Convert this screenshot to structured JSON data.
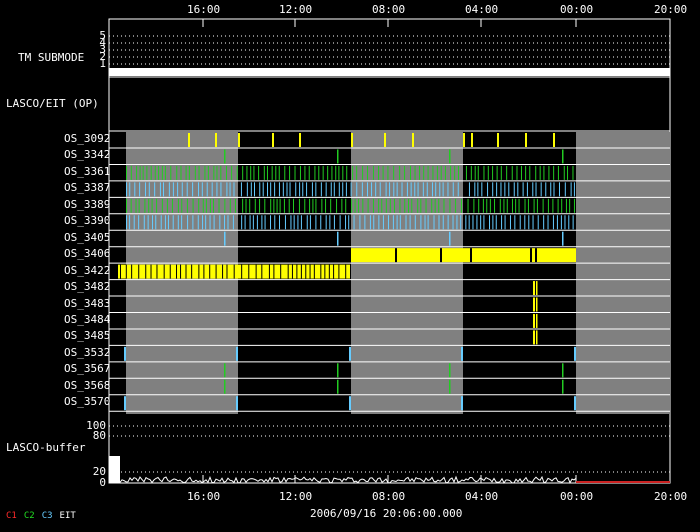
{
  "chart_data": {
    "type": "timeline",
    "time_ticks": [
      "16:00",
      "12:00",
      "08:00",
      "04:00",
      "00:00",
      "20:00"
    ],
    "panel_labels": {
      "tm_submode": "TM SUBMODE",
      "lasco_eit": "LASCO/EIT (OP)",
      "lasco_buffer": "LASCO-buffer"
    },
    "tm_submode_ticks": [
      "5",
      "4",
      "3",
      "2",
      "1"
    ],
    "buffer_ticks": [
      "100",
      "80",
      "20",
      "0"
    ],
    "timestamp": "2006/09/16 20:06:00.000",
    "legend": [
      {
        "label": "C1",
        "color": "#ff2a2a"
      },
      {
        "label": "C2",
        "color": "#22dd22"
      },
      {
        "label": "C3",
        "color": "#66ccff"
      },
      {
        "label": "EIT",
        "color": "#ffffff"
      }
    ],
    "colors": {
      "gray_band": "#808080",
      "yellow": "#ffff00",
      "green": "#22cc22",
      "cyan": "#66ccff",
      "white": "#ffffff"
    },
    "rows": [
      {
        "name": "OS_3092",
        "pattern": "sparse",
        "color": "yellow"
      },
      {
        "name": "OS_3342",
        "pattern": "one_per_cycle",
        "color": "green"
      },
      {
        "name": "OS_3361",
        "pattern": "dense",
        "color": "green"
      },
      {
        "name": "OS_3387",
        "pattern": "dense",
        "color": "cyan"
      },
      {
        "name": "OS_3389",
        "pattern": "dense",
        "color": "green"
      },
      {
        "name": "OS_3390",
        "pattern": "dense",
        "color": "cyan"
      },
      {
        "name": "OS_3405",
        "pattern": "one_per_cycle",
        "color": "cyan"
      },
      {
        "name": "OS_3406",
        "pattern": "block_mid",
        "color": "yellow"
      },
      {
        "name": "OS_3422",
        "pattern": "block_early",
        "color": "yellow"
      },
      {
        "name": "OS_3482",
        "pattern": "short_burst",
        "color": "yellow"
      },
      {
        "name": "OS_3483",
        "pattern": "short_burst",
        "color": "yellow"
      },
      {
        "name": "OS_3484",
        "pattern": "short_burst",
        "color": "yellow"
      },
      {
        "name": "OS_3485",
        "pattern": "short_burst",
        "color": "yellow"
      },
      {
        "name": "OS_3532",
        "pattern": "boundary",
        "color": "cyan"
      },
      {
        "name": "OS_3567",
        "pattern": "one_per_cycle",
        "color": "green"
      },
      {
        "name": "OS_3568",
        "pattern": "one_per_cycle",
        "color": "green"
      },
      {
        "name": "OS_3570",
        "pattern": "boundary",
        "color": "cyan"
      }
    ]
  }
}
